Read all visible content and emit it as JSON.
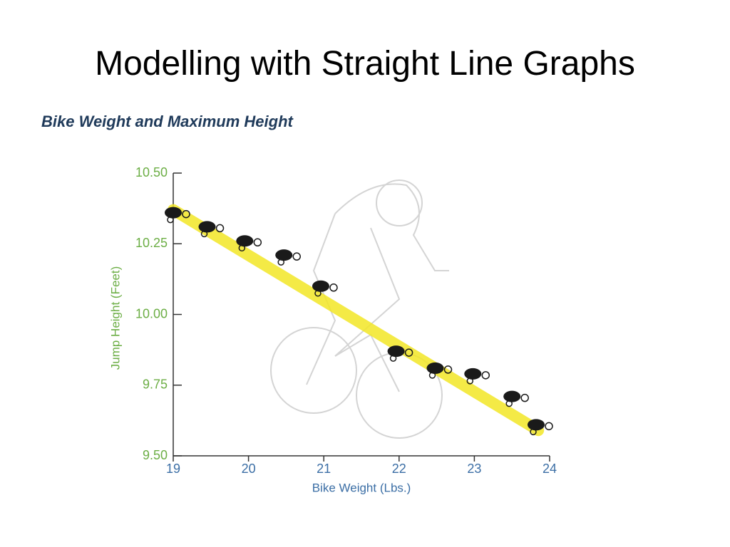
{
  "chart_data": {
    "type": "scatter",
    "title": "Modelling with Straight Line Graphs",
    "subtitle": "Bike Weight and Maximum Height",
    "x_label": "Bike Weight (Lbs.)",
    "y_label": "Jump Height (Feet)",
    "x": [
      19.0,
      19.45,
      19.95,
      20.47,
      20.96,
      21.96,
      22.48,
      22.98,
      23.5,
      23.82
    ],
    "values": [
      10.36,
      10.31,
      10.26,
      10.21,
      10.1,
      9.87,
      9.81,
      9.79,
      9.71,
      9.61
    ],
    "color": "#1a1a1a",
    "trend_line": {
      "x": [
        19,
        23.85
      ],
      "y": [
        10.37,
        9.59
      ],
      "color": "#f2e626"
    },
    "xlim": [
      19,
      24
    ],
    "ylim": [
      9.5,
      10.5
    ],
    "xticks": [
      19,
      20,
      21,
      22,
      23,
      24
    ],
    "yticks": [
      {
        "value": 9.5,
        "label": "9.50"
      },
      9.75,
      {
        "value": 10,
        "label": "10.00"
      },
      10.25,
      {
        "value": 10.5,
        "label": "10.50"
      }
    ],
    "grid": false
  }
}
